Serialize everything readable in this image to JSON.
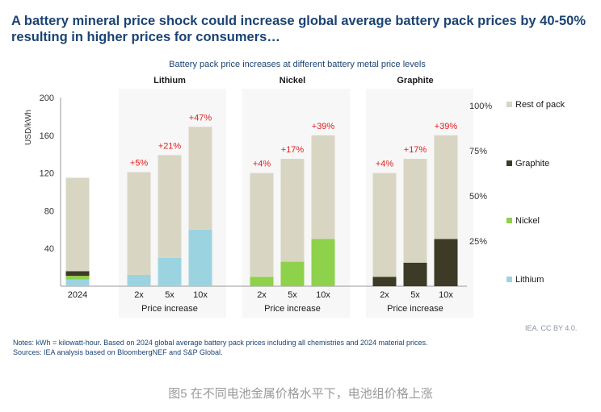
{
  "headline": "A battery mineral price shock could increase global average battery pack prices by 40-50% resulting in higher prices for consumers…",
  "colors": {
    "rest_of_pack": "#d8d6c3",
    "graphite": "#3d3b26",
    "nickel": "#8ed14b",
    "lithium": "#9cd3e0",
    "annotation": "#e02020",
    "panel_bg": "#f7f7f7"
  },
  "chart_data": {
    "type": "bar",
    "stacked": true,
    "title": "Battery pack price increases at different battery metal price levels",
    "ylabel": "USD/kWh",
    "ylim": [
      0,
      200
    ],
    "yticks": [
      "0",
      "40",
      "80",
      "120",
      "160",
      "200"
    ],
    "grid": false,
    "legend_position": "right",
    "groups": [
      {
        "label": "",
        "categories": [
          "2024"
        ],
        "x_title": "",
        "shaded": false,
        "bars": [
          {
            "category": "2024",
            "annotation": "",
            "segments": [
              {
                "series": "Lithium",
                "value": 7
              },
              {
                "series": "Nickel",
                "value": 4
              },
              {
                "series": "Graphite",
                "value": 5
              },
              {
                "series": "Rest of pack",
                "value": 99
              }
            ]
          }
        ]
      },
      {
        "label": "Lithium",
        "categories": [
          "2x",
          "5x",
          "10x"
        ],
        "x_title": "Price increase",
        "shaded": true,
        "bars": [
          {
            "category": "2x",
            "annotation": "+5%",
            "segments": [
              {
                "series": "Lithium",
                "value": 12
              },
              {
                "series": "Rest of pack",
                "value": 109
              }
            ]
          },
          {
            "category": "5x",
            "annotation": "+21%",
            "segments": [
              {
                "series": "Lithium",
                "value": 30
              },
              {
                "series": "Rest of pack",
                "value": 109
              }
            ]
          },
          {
            "category": "10x",
            "annotation": "+47%",
            "segments": [
              {
                "series": "Lithium",
                "value": 60
              },
              {
                "series": "Rest of pack",
                "value": 109
              }
            ]
          }
        ]
      },
      {
        "label": "Nickel",
        "categories": [
          "2x",
          "5x",
          "10x"
        ],
        "x_title": "Price increase",
        "shaded": true,
        "bars": [
          {
            "category": "2x",
            "annotation": "+4%",
            "segments": [
              {
                "series": "Nickel",
                "value": 10
              },
              {
                "series": "Rest of pack",
                "value": 110
              }
            ]
          },
          {
            "category": "5x",
            "annotation": "+17%",
            "segments": [
              {
                "series": "Nickel",
                "value": 26
              },
              {
                "series": "Rest of pack",
                "value": 109
              }
            ]
          },
          {
            "category": "10x",
            "annotation": "+39%",
            "segments": [
              {
                "series": "Nickel",
                "value": 50
              },
              {
                "series": "Rest of pack",
                "value": 110
              }
            ]
          }
        ]
      },
      {
        "label": "Graphite",
        "categories": [
          "2x",
          "5x",
          "10x"
        ],
        "x_title": "Price increase",
        "shaded": true,
        "bars": [
          {
            "category": "2x",
            "annotation": "+4%",
            "segments": [
              {
                "series": "Graphite",
                "value": 10
              },
              {
                "series": "Rest of pack",
                "value": 110
              }
            ]
          },
          {
            "category": "5x",
            "annotation": "+17%",
            "segments": [
              {
                "series": "Graphite",
                "value": 25
              },
              {
                "series": "Rest of pack",
                "value": 110
              }
            ]
          },
          {
            "category": "10x",
            "annotation": "+39%",
            "segments": [
              {
                "series": "Graphite",
                "value": 50
              },
              {
                "series": "Rest of pack",
                "value": 110
              }
            ]
          }
        ]
      }
    ],
    "legend": [
      {
        "name": "Rest of pack",
        "color_key": "rest_of_pack"
      },
      {
        "name": "Graphite",
        "color_key": "graphite"
      },
      {
        "name": "Nickel",
        "color_key": "nickel"
      },
      {
        "name": "Lithium",
        "color_key": "lithium"
      }
    ],
    "right_axis_labels": [
      "100%",
      "75%",
      "50%",
      "25%"
    ]
  },
  "notes": {
    "line1": "Notes: kWh = kilowatt-hour. Based on 2024 global average battery pack prices including all chemistries and 2024 material prices.",
    "line2": "Sources: IEA analysis based on BloombergNEF and S&P Global."
  },
  "license": "IEA. CC BY 4.0.",
  "caption": "图5 在不同电池金属价格水平下，电池组价格上涨"
}
